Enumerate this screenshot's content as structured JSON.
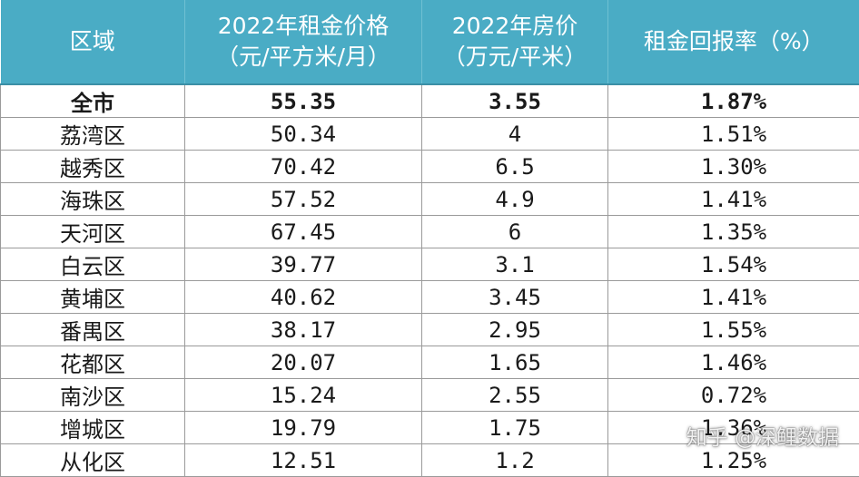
{
  "table": {
    "headers": [
      {
        "line1": "区域",
        "line2": ""
      },
      {
        "line1": "2022年租金价格",
        "line2": "（元/平方米/月）"
      },
      {
        "line1": "2022年房价",
        "line2": "（万元/平米）"
      },
      {
        "line1": "租金回报率（%）",
        "line2": ""
      }
    ],
    "rows": [
      {
        "region": "全市",
        "rent": "55.35",
        "price": "3.55",
        "yield": "1.87%"
      },
      {
        "region": "荔湾区",
        "rent": "50.34",
        "price": "4",
        "yield": "1.51%"
      },
      {
        "region": "越秀区",
        "rent": "70.42",
        "price": "6.5",
        "yield": "1.30%"
      },
      {
        "region": "海珠区",
        "rent": "57.52",
        "price": "4.9",
        "yield": "1.41%"
      },
      {
        "region": "天河区",
        "rent": "67.45",
        "price": "6",
        "yield": "1.35%"
      },
      {
        "region": "白云区",
        "rent": "39.77",
        "price": "3.1",
        "yield": "1.54%"
      },
      {
        "region": "黄埔区",
        "rent": "40.62",
        "price": "3.45",
        "yield": "1.41%"
      },
      {
        "region": "番禺区",
        "rent": "38.17",
        "price": "2.95",
        "yield": "1.55%"
      },
      {
        "region": "花都区",
        "rent": "20.07",
        "price": "1.65",
        "yield": "1.46%"
      },
      {
        "region": "南沙区",
        "rent": "15.24",
        "price": "2.55",
        "yield": "0.72%"
      },
      {
        "region": "增城区",
        "rent": "19.79",
        "price": "1.75",
        "yield": "1.36%"
      },
      {
        "region": "从化区",
        "rent": "12.51",
        "price": "1.2",
        "yield": "1.25%"
      }
    ]
  },
  "watermark": "知乎 @深鲤数据",
  "colors": {
    "header_bg": "#4aacc5",
    "header_text": "#ffffff",
    "grid": "#9a9a9a"
  }
}
